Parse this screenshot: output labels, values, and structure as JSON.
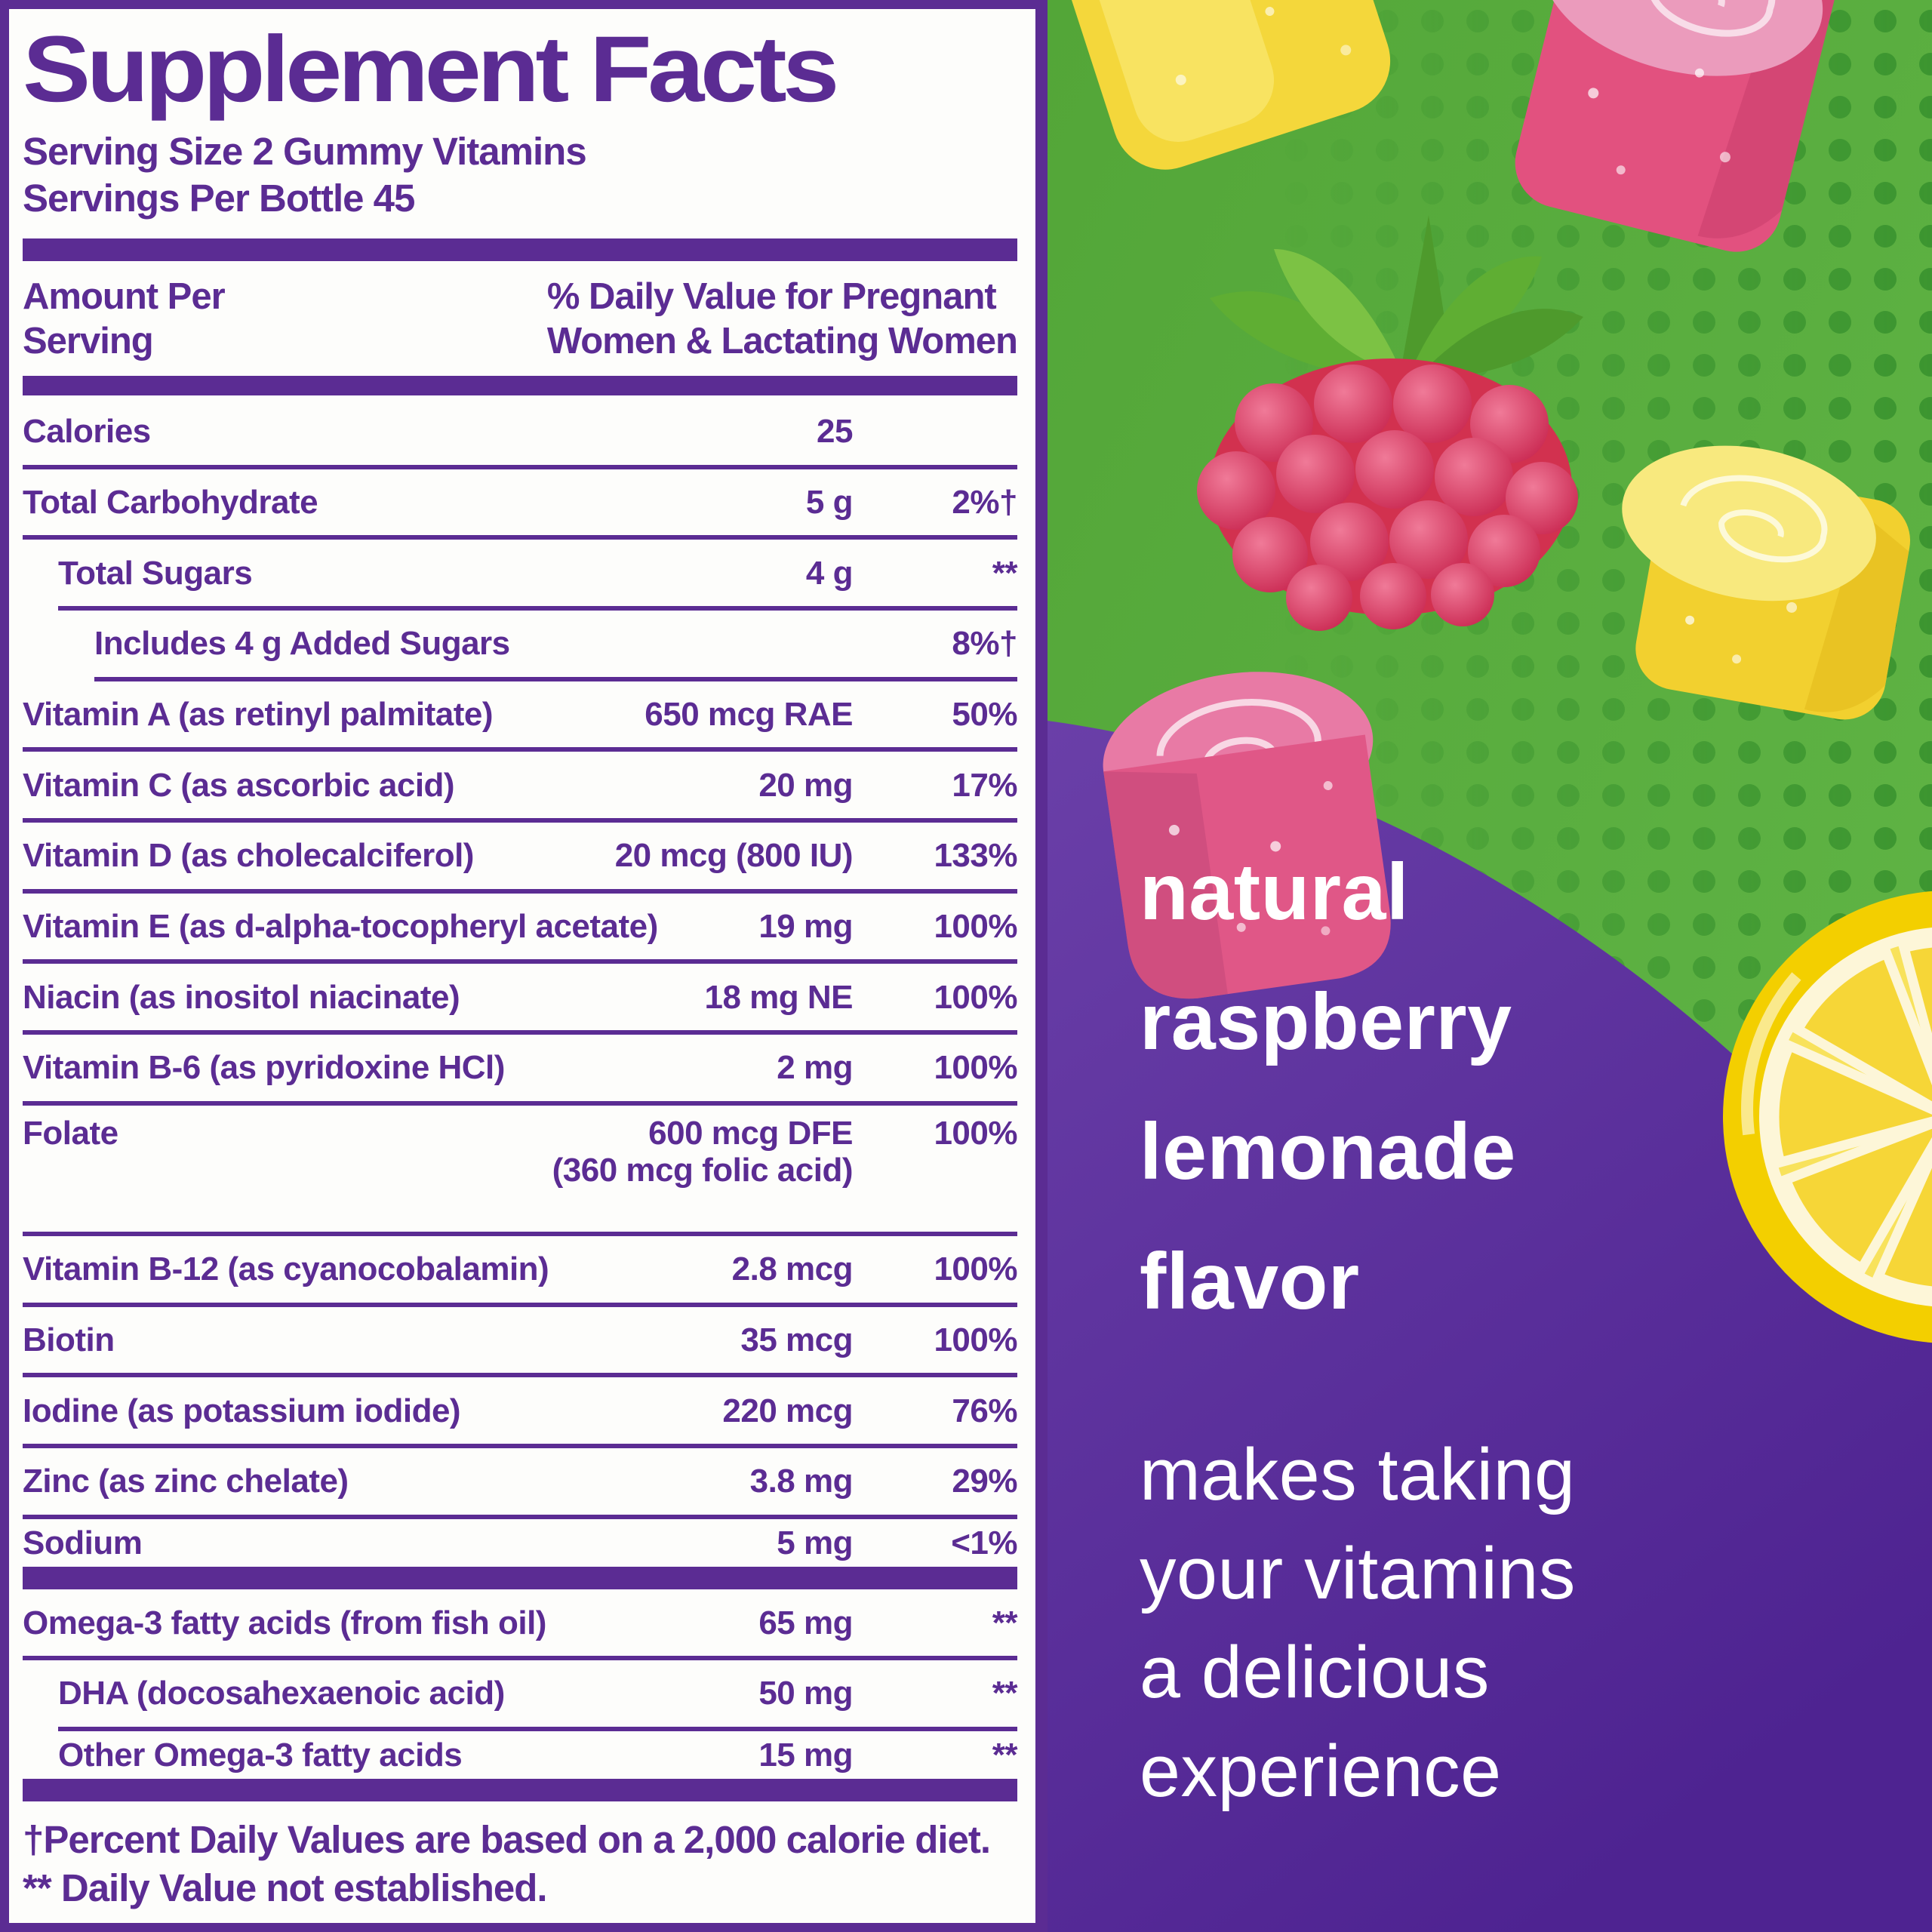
{
  "label": {
    "title": "Supplement Facts",
    "serving_size": "Serving Size 2 Gummy Vitamins",
    "servings_per_bottle": "Servings Per Bottle 45",
    "header": {
      "left_line1": "Amount Per",
      "left_line2": "Serving",
      "right_line1": "% Daily Value for Pregnant",
      "right_line2": "Women & Lactating Women"
    },
    "rows": [
      {
        "name": "Calories",
        "amount": "25",
        "pct": "",
        "indent": 0,
        "sep": "line"
      },
      {
        "name": "Total Carbohydrate",
        "amount": "5 g",
        "pct": "2%†",
        "indent": 0,
        "sep": "line"
      },
      {
        "name": "Total Sugars",
        "amount": "4 g",
        "pct": "**",
        "indent": 1,
        "sep": "line"
      },
      {
        "name": "Includes 4 g Added Sugars",
        "amount": "",
        "pct": "8%†",
        "indent": 2,
        "sep": "line"
      },
      {
        "name": "Vitamin A (as retinyl palmitate)",
        "amount": "650 mcg RAE",
        "pct": "50%",
        "indent": 0,
        "sep": "line"
      },
      {
        "name": "Vitamin C (as ascorbic acid)",
        "amount": "20 mg",
        "pct": "17%",
        "indent": 0,
        "sep": "line"
      },
      {
        "name": "Vitamin D (as cholecalciferol)",
        "amount": "20 mcg (800 IU)",
        "pct": "133%",
        "indent": 0,
        "sep": "line"
      },
      {
        "name": "Vitamin E (as d-alpha-tocopheryl acetate)",
        "amount": "19 mg",
        "pct": "100%",
        "indent": 0,
        "sep": "line"
      },
      {
        "name": "Niacin (as inositol niacinate)",
        "amount": "18 mg NE",
        "pct": "100%",
        "indent": 0,
        "sep": "line"
      },
      {
        "name": "Vitamin B-6 (as pyridoxine HCl)",
        "amount": "2 mg",
        "pct": "100%",
        "indent": 0,
        "sep": "line"
      },
      {
        "name": "Folate",
        "amount": "600 mcg DFE",
        "amount2": "(360 mcg folic acid)",
        "pct": "100%",
        "indent": 0,
        "sep": "line"
      },
      {
        "name": "Vitamin B-12 (as cyanocobalamin)",
        "amount": "2.8 mcg",
        "pct": "100%",
        "indent": 0,
        "sep": "line"
      },
      {
        "name": "Biotin",
        "amount": "35 mcg",
        "pct": "100%",
        "indent": 0,
        "sep": "line"
      },
      {
        "name": "Iodine (as potassium iodide)",
        "amount": "220 mcg",
        "pct": "76%",
        "indent": 0,
        "sep": "line"
      },
      {
        "name": "Zinc (as zinc chelate)",
        "amount": "3.8 mg",
        "pct": "29%",
        "indent": 0,
        "sep": "line"
      },
      {
        "name": "Sodium",
        "amount": "5 mg",
        "pct": "<1%",
        "indent": 0,
        "sep": "bar"
      },
      {
        "name": "Omega-3 fatty acids (from fish oil)",
        "amount": "65 mg",
        "pct": "**",
        "indent": 0,
        "sep": "line"
      },
      {
        "name": "DHA (docosahexaenoic acid)",
        "amount": "50 mg",
        "pct": "**",
        "indent": 1,
        "sep": "line"
      },
      {
        "name": "Other Omega-3 fatty acids",
        "amount": "15 mg",
        "pct": "**",
        "indent": 1,
        "sep": "bar"
      }
    ],
    "footnotes": [
      "†Percent Daily Values are based on a 2,000 calorie diet.",
      "** Daily Value not established."
    ]
  },
  "panel": {
    "flavor_lines": [
      "natural",
      "raspberry",
      "lemonade",
      "flavor"
    ],
    "tagline_lines": [
      "makes taking",
      "your vitamins",
      "a delicious",
      "experience"
    ]
  },
  "art": {
    "icons": [
      "gummy-yellow-icon",
      "gummy-raspberry-swirl-icon",
      "raspberry-icon",
      "gummy-lemon-swirl-icon",
      "lemon-slice-icon"
    ]
  },
  "colors": {
    "label_purple": "#5b2c93",
    "background_purple_top": "#6a3fa8",
    "background_purple_bottom": "#4e2391",
    "background_green": "#55a83a",
    "dot_green": "#3c9530",
    "gummy_yellow": "#f4d73b",
    "gummy_pink": "#e2517f",
    "raspberry_red": "#d2314f",
    "leaf_green": "#5fae33",
    "lemon_yellow": "#f3cf00",
    "text_white": "#ffffff"
  }
}
